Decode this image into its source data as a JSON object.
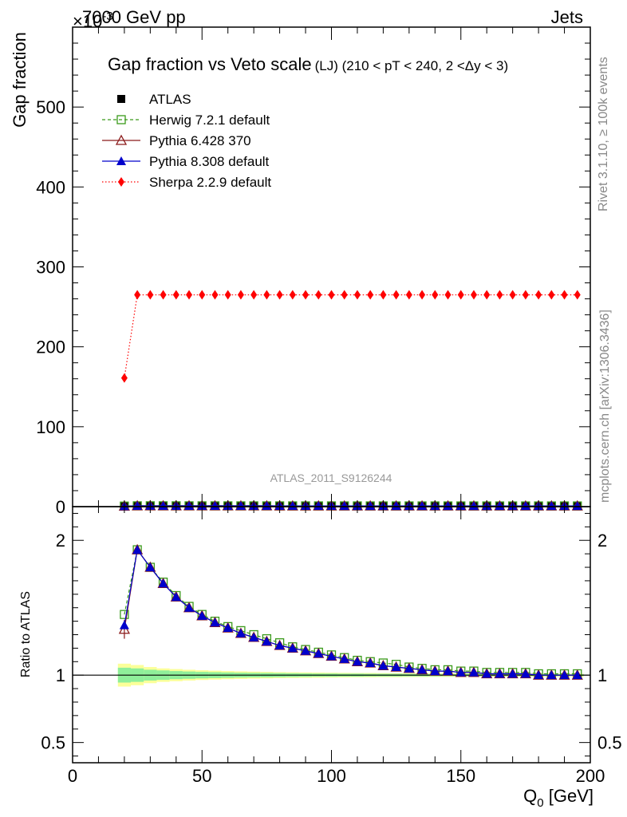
{
  "header": {
    "left": "7000 GeV pp",
    "right": "Jets"
  },
  "side_labels": {
    "rivet": "Rivet 3.1.10, ≥ 100k events",
    "mcplots": "mcplots.cern.ch [arXiv:1306.3436]"
  },
  "colors": {
    "atlas": "#000000",
    "herwig": "#3a9a1a",
    "pythia6": "#8b1a1a",
    "pythia8": "#0000cc",
    "sherpa": "#ff0000",
    "band_inner": "#8fef9a",
    "band_outer": "#fbff99"
  },
  "chart_data": {
    "type": "line",
    "title_main": "Gap fraction vs Veto scale",
    "title_sub": "(LJ) (210 < pT < 240, 2 <Δy < 3)",
    "watermark": "ATLAS_2011_S9126244",
    "xlabel": "Q",
    "xlabel_sub": "0",
    "xlabel_unit": " [GeV]",
    "xlim": [
      0,
      200
    ],
    "x_ticks": [
      "0",
      "50",
      "100",
      "150",
      "200"
    ],
    "main": {
      "ylabel": "Gap fraction",
      "exponent": "×10",
      "exponent_power": "-3",
      "ylim": [
        0,
        600
      ],
      "y_ticks": [
        "0",
        "100",
        "200",
        "300",
        "400",
        "500"
      ]
    },
    "ratio": {
      "ylabel": "Ratio to ATLAS",
      "ylim": [
        0.35,
        2.25
      ],
      "y_ticks": [
        "0.5",
        "1",
        "2"
      ]
    },
    "x": [
      20,
      25,
      30,
      35,
      40,
      45,
      50,
      55,
      60,
      65,
      70,
      75,
      80,
      85,
      90,
      95,
      100,
      105,
      110,
      115,
      120,
      125,
      130,
      135,
      140,
      145,
      150,
      155,
      160,
      165,
      170,
      175,
      180,
      185,
      190,
      195
    ],
    "legend": [
      {
        "name": "ATLAS",
        "style": "data"
      },
      {
        "name": "Herwig 7.2.1 default",
        "style": "herwig"
      },
      {
        "name": "Pythia 6.428 370",
        "style": "pythia6"
      },
      {
        "name": "Pythia 8.308 default",
        "style": "pythia8"
      },
      {
        "name": "Sherpa 2.2.9 default",
        "style": "sherpa"
      }
    ],
    "series": [
      {
        "name": "ATLAS",
        "key": "data",
        "values": [
          0.5,
          0.55,
          0.6,
          0.63,
          0.66,
          0.68,
          0.7,
          0.72,
          0.73,
          0.74,
          0.75,
          0.76,
          0.77,
          0.78,
          0.78,
          0.79,
          0.8,
          0.8,
          0.81,
          0.81,
          0.82,
          0.82,
          0.83,
          0.83,
          0.84,
          0.84,
          0.84,
          0.85,
          0.85,
          0.85,
          0.86,
          0.86,
          0.86,
          0.86,
          0.87,
          0.87
        ]
      },
      {
        "name": "Herwig 7.2.1 default",
        "key": "herwig",
        "values": [
          0.72,
          1.05,
          1.08,
          1.06,
          1.05,
          1.03,
          1.02,
          1.01,
          1.0,
          0.99,
          0.98,
          0.98,
          0.97,
          0.96,
          0.96,
          0.95,
          0.95,
          0.94,
          0.94,
          0.93,
          0.93,
          0.93,
          0.92,
          0.92,
          0.92,
          0.91,
          0.91,
          0.91,
          0.9,
          0.9,
          0.9,
          0.9,
          0.89,
          0.89,
          0.89,
          0.89
        ]
      },
      {
        "name": "Pythia 6.428 370",
        "key": "pythia6",
        "values": [
          0.67,
          1.06,
          1.08,
          1.06,
          1.04,
          1.03,
          1.01,
          1.0,
          0.99,
          0.98,
          0.98,
          0.97,
          0.96,
          0.95,
          0.95,
          0.94,
          0.94,
          0.93,
          0.93,
          0.92,
          0.92,
          0.92,
          0.91,
          0.91,
          0.91,
          0.9,
          0.9,
          0.9,
          0.89,
          0.89,
          0.89,
          0.89,
          0.88,
          0.88,
          0.88,
          0.88
        ]
      },
      {
        "name": "Pythia 8.308 default",
        "key": "pythia8",
        "values": [
          0.68,
          1.06,
          1.08,
          1.06,
          1.04,
          1.03,
          1.01,
          1.0,
          0.99,
          0.98,
          0.98,
          0.97,
          0.96,
          0.95,
          0.95,
          0.94,
          0.94,
          0.93,
          0.93,
          0.92,
          0.92,
          0.92,
          0.91,
          0.91,
          0.91,
          0.9,
          0.9,
          0.9,
          0.89,
          0.89,
          0.89,
          0.89,
          0.88,
          0.88,
          0.88,
          0.88
        ]
      },
      {
        "name": "Sherpa 2.2.9 default",
        "key": "sherpa",
        "values": [
          161,
          265,
          265,
          265,
          265,
          265,
          265,
          265,
          265,
          265,
          265,
          265,
          265,
          265,
          265,
          265,
          265,
          265,
          265,
          265,
          265,
          265,
          265,
          265,
          265,
          265,
          265,
          265,
          265,
          265,
          265,
          265,
          265,
          265,
          265,
          265
        ]
      }
    ],
    "ratios": {
      "herwig": [
        1.45,
        1.93,
        1.8,
        1.69,
        1.59,
        1.51,
        1.45,
        1.4,
        1.36,
        1.33,
        1.3,
        1.27,
        1.24,
        1.21,
        1.19,
        1.17,
        1.15,
        1.13,
        1.11,
        1.1,
        1.09,
        1.08,
        1.06,
        1.05,
        1.04,
        1.04,
        1.03,
        1.03,
        1.02,
        1.02,
        1.02,
        1.02,
        1.01,
        1.01,
        1.01,
        1.01
      ],
      "pythia6": [
        1.34,
        1.93,
        1.8,
        1.68,
        1.58,
        1.5,
        1.44,
        1.39,
        1.35,
        1.31,
        1.28,
        1.25,
        1.22,
        1.2,
        1.18,
        1.16,
        1.14,
        1.12,
        1.1,
        1.09,
        1.07,
        1.06,
        1.05,
        1.04,
        1.03,
        1.03,
        1.02,
        1.02,
        1.01,
        1.01,
        1.01,
        1.01,
        1.0,
        1.0,
        1.0,
        1.0
      ],
      "pythia8": [
        1.37,
        1.93,
        1.8,
        1.68,
        1.58,
        1.5,
        1.44,
        1.39,
        1.35,
        1.31,
        1.28,
        1.25,
        1.22,
        1.2,
        1.18,
        1.16,
        1.14,
        1.12,
        1.1,
        1.09,
        1.07,
        1.06,
        1.05,
        1.04,
        1.03,
        1.03,
        1.02,
        1.02,
        1.01,
        1.01,
        1.01,
        1.01,
        1.0,
        1.0,
        1.0,
        1.0
      ],
      "pythia6_err": [
        0.07,
        0.03,
        0.02,
        0.02,
        0.01,
        0.01,
        0.01,
        0.01,
        0.01,
        0.01,
        0.01,
        0.01,
        0.01,
        0.01,
        0.01,
        0.01,
        0.01,
        0.01,
        0.01,
        0.01,
        0.01,
        0.01,
        0.01,
        0.01,
        0.01,
        0.01,
        0.01,
        0.01,
        0.01,
        0.01,
        0.01,
        0.01,
        0.01,
        0.01,
        0.01,
        0.01
      ]
    },
    "band": {
      "x_edges": [
        17.5,
        22.5,
        27.5,
        32.5,
        37.5,
        42.5,
        47.5,
        52.5,
        57.5,
        62.5,
        67.5,
        72.5,
        77.5,
        82.5,
        87.5,
        92.5,
        97.5,
        102.5,
        107.5,
        112.5,
        117.5,
        122.5,
        127.5,
        132.5,
        137.5,
        142.5,
        147.5,
        152.5,
        157.5,
        162.5,
        167.5,
        172.5,
        177.5,
        182.5,
        187.5,
        192.5,
        197.5
      ],
      "inner": [
        0.055,
        0.05,
        0.04,
        0.035,
        0.03,
        0.027,
        0.024,
        0.022,
        0.02,
        0.018,
        0.017,
        0.016,
        0.015,
        0.014,
        0.013,
        0.012,
        0.012,
        0.011,
        0.011,
        0.01,
        0.01,
        0.01,
        0.009,
        0.009,
        0.009,
        0.008,
        0.008,
        0.008,
        0.008,
        0.007,
        0.007,
        0.007,
        0.007,
        0.007,
        0.006,
        0.006
      ],
      "outer": [
        0.085,
        0.075,
        0.06,
        0.05,
        0.045,
        0.04,
        0.036,
        0.033,
        0.03,
        0.028,
        0.026,
        0.024,
        0.022,
        0.021,
        0.02,
        0.019,
        0.018,
        0.017,
        0.016,
        0.016,
        0.015,
        0.015,
        0.014,
        0.014,
        0.013,
        0.013,
        0.013,
        0.012,
        0.012,
        0.012,
        0.011,
        0.011,
        0.011,
        0.011,
        0.01,
        0.01
      ]
    }
  }
}
